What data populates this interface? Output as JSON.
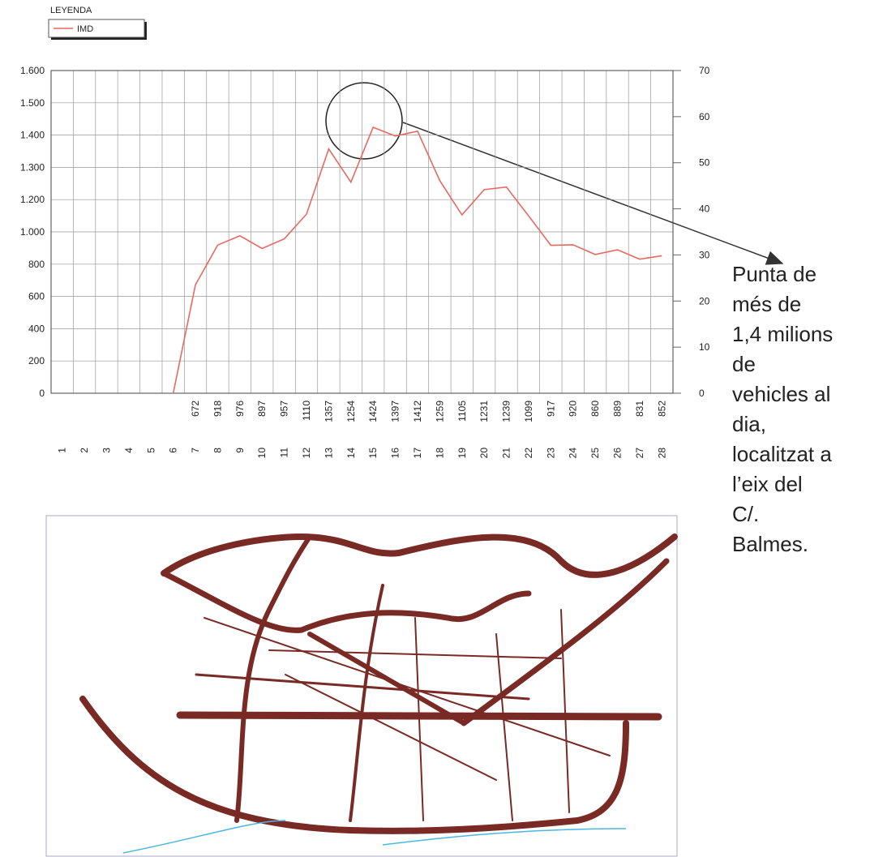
{
  "chart_data": {
    "type": "line",
    "legend_title": "LEYENDA",
    "categories": [
      "1",
      "2",
      "3",
      "4",
      "5",
      "6",
      "7",
      "8",
      "9",
      "10",
      "11",
      "12",
      "13",
      "14",
      "15",
      "16",
      "17",
      "18",
      "19",
      "20",
      "21",
      "22",
      "23",
      "24",
      "25",
      "26",
      "27",
      "28"
    ],
    "series": [
      {
        "name": "IMD",
        "color": "#e8695f",
        "values": [
          null,
          null,
          null,
          null,
          null,
          0,
          672,
          918,
          976,
          897,
          957,
          1110,
          1357,
          1254,
          1424,
          1397,
          1412,
          1259,
          1105,
          1231,
          1239,
          1099,
          917,
          920,
          860,
          889,
          831,
          852
        ]
      }
    ],
    "ylim": [
      0,
      1600
    ],
    "yticks": [
      0,
      200,
      400,
      600,
      800,
      {
        "value": 1000,
        "label": "1.000"
      },
      {
        "value": 1200,
        "label": "1.200"
      },
      {
        "value": 1300,
        "label": "1.300"
      },
      {
        "value": 1400,
        "label": "1.400"
      },
      {
        "value": 1500,
        "label": "1.500"
      },
      {
        "value": 1600,
        "label": "1.600"
      }
    ],
    "y2lim": [
      0,
      70
    ],
    "y2ticks": [
      0,
      10,
      20,
      30,
      40,
      50,
      60,
      70
    ],
    "grid": true,
    "annotation_lines": [
      "Punta de",
      "més de",
      "1,4 milions",
      "de",
      "vehicles al",
      "dia,",
      "localitzat a",
      "l’eix del",
      "C/.",
      "Balmes."
    ]
  }
}
